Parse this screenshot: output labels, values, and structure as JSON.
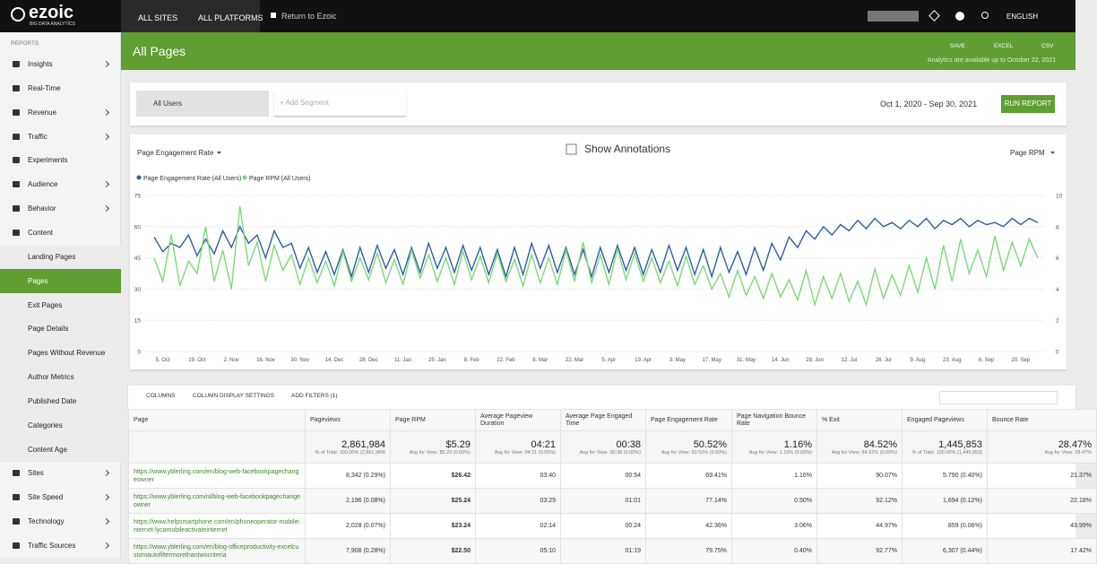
{
  "topbar": {
    "logo": "ezoic",
    "logo_sub": "BIG DATA ANALYTICS",
    "tabs": [
      "ALL SITES",
      "ALL PLATFORMS"
    ],
    "return": "Return to Ezoic",
    "language": "ENGLISH"
  },
  "sidebar": {
    "heading": "REPORTS",
    "items_top": [
      "Insights",
      "Real-Time",
      "Revenue",
      "Traffic",
      "Experiments",
      "Audience",
      "Behavior",
      "Content"
    ],
    "content_items": [
      "Landing Pages",
      "Pages",
      "Exit Pages",
      "Page Details",
      "Pages Without Revenue",
      "Author Metrics",
      "Published Date",
      "Categories",
      "Content Age"
    ],
    "items_bottom": [
      "Sites",
      "Site Speed",
      "Technology",
      "Traffic Sources"
    ]
  },
  "header": {
    "title": "All Pages",
    "actions": [
      "SAVE",
      "EXCEL",
      "CSV"
    ],
    "note": "Analytics are available up to October 22, 2021"
  },
  "segments": {
    "segment": "All Users",
    "add": "+ Add Segment",
    "date_range": "Oct 1, 2020 - Sep 30, 2021",
    "run": "RUN REPORT"
  },
  "chart_data": {
    "type": "line",
    "metric_left": "Page Engagement Rate",
    "show_annotations": "Show Annotations",
    "metric_right": "Page RPM",
    "legend": "top-left",
    "grid": true,
    "categories": [
      null,
      "5. Oct",
      null,
      null,
      null,
      "19. Oct",
      null,
      null,
      null,
      "2. Nov",
      null,
      null,
      null,
      "16. Nov",
      null,
      null,
      null,
      "30. Nov",
      null,
      null,
      null,
      "14. Dec",
      null,
      null,
      null,
      "28. Dec",
      null,
      null,
      null,
      "11. Jan",
      null,
      null,
      null,
      "25. Jan",
      null,
      null,
      null,
      "8. Feb",
      null,
      null,
      null,
      "22. Feb",
      null,
      null,
      null,
      "8. Mar",
      null,
      null,
      null,
      "22. Mar",
      null,
      null,
      null,
      "5. Apr",
      null,
      null,
      null,
      "19. Apr",
      null,
      null,
      null,
      "3. May",
      null,
      null,
      null,
      "17. May",
      null,
      null,
      null,
      "31. May",
      null,
      null,
      null,
      "14. Jun",
      null,
      null,
      null,
      "28. Jun",
      null,
      null,
      null,
      "12. Jul",
      null,
      null,
      null,
      "26. Jul",
      null,
      null,
      null,
      "9. Aug",
      null,
      null,
      null,
      "23. Aug",
      null,
      null,
      null,
      "6. Sep",
      null,
      null,
      null,
      "20. Sep",
      null,
      null
    ],
    "ylim": [
      0,
      75
    ],
    "yticks": [
      0,
      15,
      30,
      45,
      60,
      75
    ],
    "y2lim": [
      0,
      10
    ],
    "y2ticks": [
      0,
      2,
      4,
      6,
      8,
      10
    ],
    "series": [
      {
        "name": "Page Engagement Rate (All Users)",
        "color": "#2d5ea8",
        "values": [
          55,
          48,
          52,
          50,
          56,
          46,
          54,
          47,
          58,
          50,
          60,
          52,
          56,
          45,
          58,
          50,
          52,
          40,
          50,
          38,
          48,
          37,
          49,
          36,
          50,
          38,
          51,
          40,
          49,
          37,
          50,
          38,
          52,
          40,
          50,
          38,
          51,
          39,
          50,
          37,
          49,
          36,
          50,
          37,
          52,
          40,
          51,
          38,
          50,
          37,
          49,
          36,
          50,
          38,
          51,
          39,
          50,
          37,
          49,
          38,
          51,
          39,
          50,
          37,
          49,
          36,
          50,
          38,
          48,
          37,
          50,
          39,
          52,
          44,
          55,
          50,
          58,
          54,
          60,
          56,
          61,
          58,
          63,
          59,
          64,
          60,
          62,
          59,
          63,
          60,
          64,
          59,
          63,
          61,
          64,
          60,
          63,
          61,
          62,
          60,
          64,
          61,
          64,
          62
        ]
      },
      {
        "name": "Page RPM (All Users)",
        "color": "#7ed87a",
        "axis": "y2",
        "values": [
          6.0,
          4.5,
          7.5,
          4.2,
          5.8,
          5.0,
          8.0,
          4.5,
          6.5,
          4.0,
          9.3,
          5.5,
          7.0,
          4.5,
          6.8,
          5.2,
          6.2,
          4.3,
          6.0,
          4.4,
          5.8,
          4.2,
          6.4,
          4.5,
          6.0,
          4.6,
          6.3,
          4.4,
          5.9,
          4.3,
          6.5,
          4.7,
          6.2,
          4.5,
          6.0,
          4.3,
          6.4,
          4.6,
          6.1,
          4.4,
          6.3,
          4.5,
          5.9,
          4.2,
          6.2,
          4.4,
          6.0,
          4.3,
          6.5,
          4.5,
          7.0,
          4.4,
          6.2,
          4.3,
          6.6,
          4.6,
          6.3,
          4.5,
          6.0,
          4.4,
          5.8,
          4.2,
          6.1,
          4.3,
          5.5,
          4.0,
          5.0,
          3.5,
          5.2,
          3.6,
          4.8,
          3.4,
          5.0,
          3.5,
          4.6,
          3.3,
          5.2,
          3.0,
          4.8,
          3.4,
          5.0,
          3.2,
          4.5,
          3.0,
          5.3,
          3.4,
          4.9,
          3.6,
          5.5,
          3.8,
          6.0,
          4.0,
          6.8,
          4.5,
          7.2,
          5.0,
          6.5,
          4.8,
          7.4,
          5.2,
          7.0,
          5.5,
          7.2,
          6.0
        ]
      }
    ]
  },
  "table": {
    "toolbar": [
      "COLUMNS",
      "COLUMN DISPLAY SETTINGS",
      "ADD FILTERS (1)"
    ],
    "columns": [
      "Page",
      "Pageviews",
      "Page RPM",
      "Average Pageview Duration",
      "Average Page Engaged Time",
      "Page Engagement Rate",
      "Page Navigation Bounce Rate",
      "% Exit",
      "Engaged Pageviews",
      "Bounce Rate"
    ],
    "totals": [
      {
        "value": "2,861,984",
        "note": "% of Total: 100.00% (2,861,984)"
      },
      {
        "value": "$5.29",
        "note": "Avg for View: $5.29 (0.00%)"
      },
      {
        "value": "04:21",
        "note": "Avg for View: 04:21 (0.00%)"
      },
      {
        "value": "00:38",
        "note": "Avg for View: 00:38 (0.00%)"
      },
      {
        "value": "50.52%",
        "note": "Avg for View: 50.52% (0.00%)"
      },
      {
        "value": "1.16%",
        "note": "Avg for View: 1.16% (0.00%)"
      },
      {
        "value": "84.52%",
        "note": "Avg for View: 84.52% (0.00%)"
      },
      {
        "value": "1,445,853",
        "note": "% of Total: 100.00% (1,445,853)"
      },
      {
        "value": "28.47%",
        "note": "Avg for View: 28.47%"
      }
    ],
    "rows": [
      [
        "https://www.yblerling.com/en/blog-web-facebookpagechangeowner",
        "8,342 (0.29%)",
        "$26.42",
        "03:40",
        "00:54",
        "69.41%",
        "1.16%",
        "90.07%",
        "5,790 (0.40%)",
        "21.37%"
      ],
      [
        "https://www.yblerling.com/nl/blog-web-facebookpagechangeowner",
        "2,196 (0.08%)",
        "$25.24",
        "03:29",
        "01:01",
        "77.14%",
        "0.50%",
        "92.12%",
        "1,694 (0.12%)",
        "22.18%"
      ],
      [
        "https://www.helpsmartphone.com/en/phoneoperator-mobileinternet-lycamobileactivateinternet",
        "2,028 (0.07%)",
        "$23.24",
        "02:14",
        "00:24",
        "42.36%",
        "3.06%",
        "44.97%",
        "859 (0.06%)",
        "43.99%"
      ],
      [
        "https://www.yblerling.com/en/blog-officeproductivity-excelcustomautofiltermorethantwocriteria",
        "7,908 (0.28%)",
        "$22.50",
        "05:10",
        "01:19",
        "79.75%",
        "0.40%",
        "92.77%",
        "6,307 (0.44%)",
        "17.42%"
      ]
    ]
  }
}
